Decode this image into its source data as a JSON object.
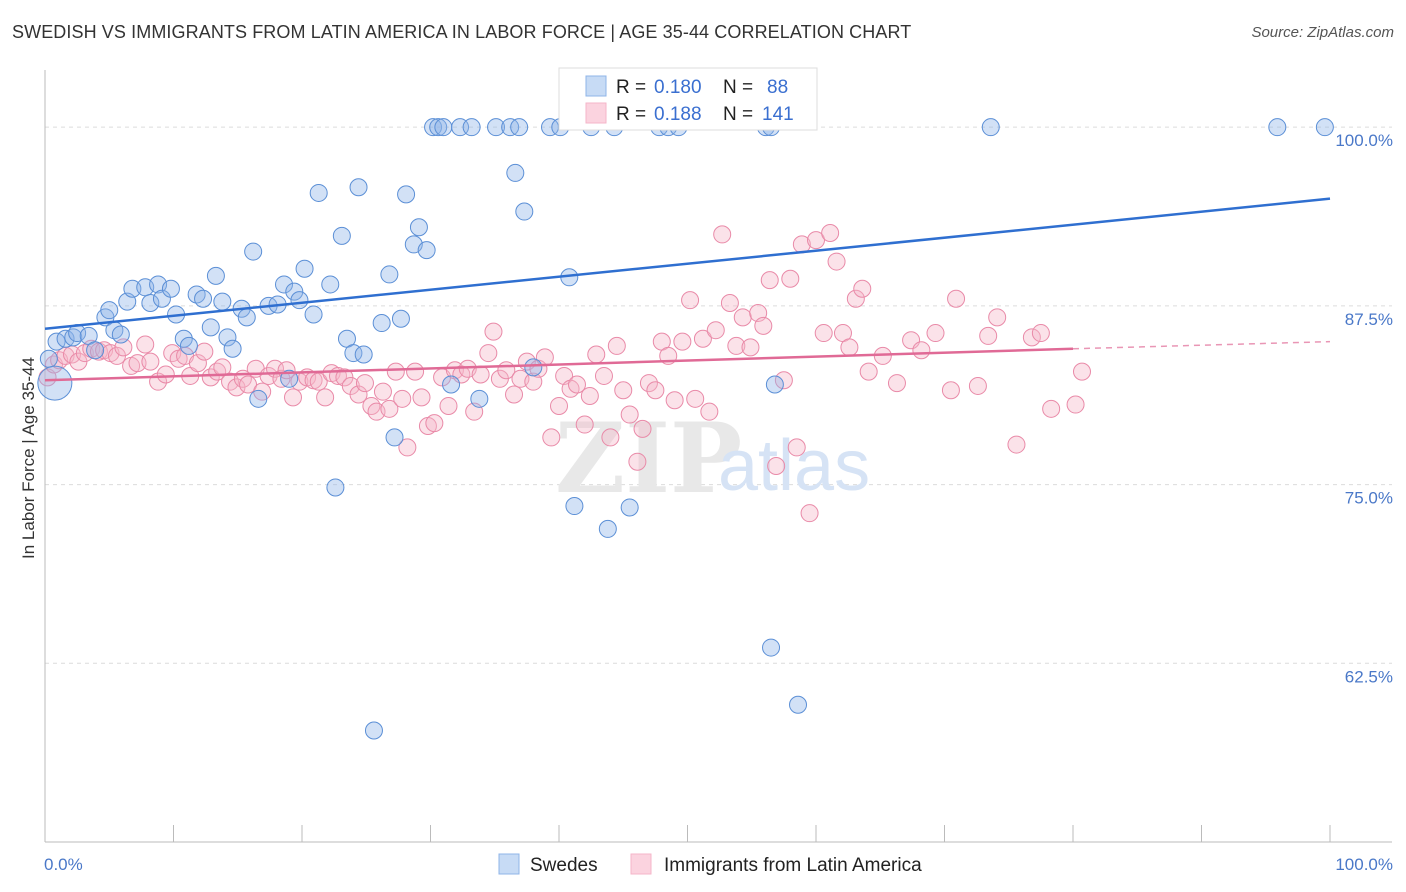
{
  "header": {
    "title": "SWEDISH VS IMMIGRANTS FROM LATIN AMERICA IN LABOR FORCE | AGE 35-44 CORRELATION CHART",
    "source": "Source: ZipAtlas.com"
  },
  "watermark": {
    "zip": "ZIP",
    "atlas": "atlas"
  },
  "chart_data": {
    "type": "scatter",
    "ylabel": "In Labor Force | Age 35-44",
    "xlim": [
      0,
      100
    ],
    "ylim": [
      50,
      104
    ],
    "x_tick_labels": [
      "0.0%",
      "100.0%"
    ],
    "y_ticks": [
      {
        "value": 100,
        "label": "100.0%"
      },
      {
        "value": 87.5,
        "label": "87.5%"
      },
      {
        "value": 75,
        "label": "75.0%"
      },
      {
        "value": 62.5,
        "label": "62.5%"
      }
    ],
    "grid": "horizontal dashed",
    "legend": {
      "placement": "top-center",
      "entries": [
        {
          "r_label": "R =",
          "r_value": "0.180",
          "n_label": "N =",
          "n_value": "88"
        },
        {
          "r_label": "R =",
          "r_value": "0.188",
          "n_label": "N =",
          "n_value": "141"
        }
      ]
    },
    "series": [
      {
        "name": "Swedes",
        "color": "#8fb4e8",
        "edge": "#5b8fd6",
        "trend_color": "#2f6fd0",
        "trend": {
          "x": [
            0,
            100
          ],
          "y": [
            85.9,
            95.0
          ]
        },
        "points": [
          [
            0.3,
            83.8
          ],
          [
            0.9,
            85.0
          ],
          [
            1.6,
            85.2
          ],
          [
            2.2,
            85.3
          ],
          [
            2.5,
            85.6
          ],
          [
            3.4,
            85.4
          ],
          [
            3.9,
            84.4
          ],
          [
            4.7,
            86.7
          ],
          [
            5.0,
            87.2
          ],
          [
            5.4,
            85.8
          ],
          [
            5.9,
            85.5
          ],
          [
            6.4,
            87.8
          ],
          [
            6.8,
            88.7
          ],
          [
            7.8,
            88.8
          ],
          [
            8.2,
            87.7
          ],
          [
            8.8,
            89.0
          ],
          [
            9.1,
            88.0
          ],
          [
            9.8,
            88.7
          ],
          [
            10.2,
            86.9
          ],
          [
            10.8,
            85.2
          ],
          [
            11.2,
            84.7
          ],
          [
            11.8,
            88.3
          ],
          [
            12.3,
            88.0
          ],
          [
            12.9,
            86.0
          ],
          [
            13.3,
            89.6
          ],
          [
            13.8,
            87.8
          ],
          [
            14.2,
            85.3
          ],
          [
            14.6,
            84.5
          ],
          [
            15.3,
            87.3
          ],
          [
            15.7,
            86.7
          ],
          [
            16.2,
            91.3
          ],
          [
            16.6,
            81.0
          ],
          [
            17.4,
            87.5
          ],
          [
            18.1,
            87.6
          ],
          [
            18.6,
            89.0
          ],
          [
            19.0,
            82.4
          ],
          [
            19.4,
            88.5
          ],
          [
            19.8,
            87.9
          ],
          [
            20.2,
            90.1
          ],
          [
            20.9,
            86.9
          ],
          [
            21.3,
            95.4
          ],
          [
            22.2,
            89.0
          ],
          [
            22.6,
            74.8
          ],
          [
            23.1,
            92.4
          ],
          [
            23.5,
            85.2
          ],
          [
            24.0,
            84.2
          ],
          [
            24.4,
            95.8
          ],
          [
            24.8,
            84.1
          ],
          [
            25.6,
            57.8
          ],
          [
            26.2,
            86.3
          ],
          [
            26.8,
            89.7
          ],
          [
            27.2,
            78.3
          ],
          [
            27.7,
            86.6
          ],
          [
            28.1,
            95.3
          ],
          [
            28.7,
            91.8
          ],
          [
            29.1,
            93.0
          ],
          [
            29.7,
            91.4
          ],
          [
            30.2,
            100
          ],
          [
            30.6,
            100
          ],
          [
            31.0,
            100
          ],
          [
            31.6,
            82.0
          ],
          [
            32.3,
            100
          ],
          [
            33.2,
            100
          ],
          [
            33.8,
            81.0
          ],
          [
            35.1,
            100
          ],
          [
            36.2,
            100
          ],
          [
            36.6,
            96.8
          ],
          [
            36.9,
            100
          ],
          [
            37.3,
            94.1
          ],
          [
            38.0,
            83.2
          ],
          [
            39.3,
            100
          ],
          [
            40.1,
            100
          ],
          [
            40.8,
            89.5
          ],
          [
            41.2,
            73.5
          ],
          [
            42.5,
            100
          ],
          [
            43.8,
            71.9
          ],
          [
            44.3,
            100
          ],
          [
            45.5,
            73.4
          ],
          [
            47.8,
            100
          ],
          [
            48.5,
            100
          ],
          [
            49.3,
            100
          ],
          [
            56.1,
            100
          ],
          [
            56.5,
            100
          ],
          [
            56.8,
            82.0
          ],
          [
            56.5,
            63.6
          ],
          [
            58.6,
            59.6
          ],
          [
            73.6,
            100
          ],
          [
            95.9,
            100
          ],
          [
            99.6,
            100
          ]
        ]
      },
      {
        "name": "Immigrants from Latin America",
        "color": "#f4b6c9",
        "edge": "#e98aa8",
        "trend_color": "#e06a96",
        "trend": {
          "x": [
            0,
            80
          ],
          "y": [
            82.3,
            84.5
          ]
        },
        "trend_ext": {
          "x": [
            80,
            100
          ],
          "y": [
            84.5,
            85.0
          ]
        },
        "points": [
          [
            0.2,
            82.5
          ],
          [
            0.7,
            83.4
          ],
          [
            1.1,
            83.7
          ],
          [
            1.6,
            84.0
          ],
          [
            2.1,
            84.1
          ],
          [
            2.6,
            83.6
          ],
          [
            3.1,
            84.2
          ],
          [
            3.6,
            84.5
          ],
          [
            4.2,
            84.3
          ],
          [
            4.6,
            84.4
          ],
          [
            5.1,
            84.2
          ],
          [
            5.6,
            84.0
          ],
          [
            6.1,
            84.6
          ],
          [
            6.7,
            83.3
          ],
          [
            7.2,
            83.5
          ],
          [
            7.8,
            84.8
          ],
          [
            8.2,
            83.6
          ],
          [
            8.8,
            82.2
          ],
          [
            9.4,
            82.7
          ],
          [
            9.9,
            84.2
          ],
          [
            10.4,
            83.8
          ],
          [
            10.9,
            84.0
          ],
          [
            11.3,
            82.6
          ],
          [
            11.9,
            83.5
          ],
          [
            12.4,
            84.3
          ],
          [
            12.9,
            82.5
          ],
          [
            13.4,
            82.9
          ],
          [
            13.8,
            83.2
          ],
          [
            14.4,
            82.2
          ],
          [
            14.9,
            81.8
          ],
          [
            15.4,
            82.4
          ],
          [
            15.8,
            82.0
          ],
          [
            16.4,
            83.1
          ],
          [
            16.9,
            81.5
          ],
          [
            17.4,
            82.6
          ],
          [
            17.9,
            83.1
          ],
          [
            18.4,
            82.4
          ],
          [
            18.8,
            83.0
          ],
          [
            19.3,
            81.1
          ],
          [
            19.8,
            82.2
          ],
          [
            20.4,
            82.5
          ],
          [
            20.9,
            82.3
          ],
          [
            21.3,
            82.2
          ],
          [
            21.8,
            81.1
          ],
          [
            22.3,
            82.8
          ],
          [
            22.8,
            82.6
          ],
          [
            23.3,
            82.5
          ],
          [
            23.8,
            81.9
          ],
          [
            24.4,
            81.3
          ],
          [
            24.9,
            82.1
          ],
          [
            25.4,
            80.5
          ],
          [
            25.8,
            80.1
          ],
          [
            26.3,
            81.5
          ],
          [
            26.8,
            80.3
          ],
          [
            27.3,
            82.9
          ],
          [
            27.8,
            81.0
          ],
          [
            28.2,
            77.6
          ],
          [
            28.8,
            82.9
          ],
          [
            29.3,
            81.1
          ],
          [
            29.8,
            79.1
          ],
          [
            30.3,
            79.3
          ],
          [
            30.9,
            82.5
          ],
          [
            31.4,
            80.5
          ],
          [
            31.9,
            83.0
          ],
          [
            32.4,
            82.7
          ],
          [
            32.9,
            83.1
          ],
          [
            33.4,
            80.1
          ],
          [
            33.9,
            82.7
          ],
          [
            34.5,
            84.2
          ],
          [
            34.9,
            85.7
          ],
          [
            35.4,
            82.4
          ],
          [
            35.9,
            83.0
          ],
          [
            36.5,
            81.3
          ],
          [
            37.0,
            82.4
          ],
          [
            37.5,
            83.6
          ],
          [
            38.0,
            82.2
          ],
          [
            38.4,
            83.1
          ],
          [
            38.9,
            83.9
          ],
          [
            39.4,
            78.3
          ],
          [
            40.0,
            80.5
          ],
          [
            40.4,
            82.6
          ],
          [
            40.9,
            81.7
          ],
          [
            41.4,
            82.0
          ],
          [
            42.0,
            79.2
          ],
          [
            42.4,
            81.2
          ],
          [
            42.9,
            84.1
          ],
          [
            43.5,
            82.6
          ],
          [
            44.0,
            78.3
          ],
          [
            44.5,
            84.7
          ],
          [
            45.0,
            81.6
          ],
          [
            45.5,
            79.9
          ],
          [
            46.1,
            76.6
          ],
          [
            46.5,
            78.9
          ],
          [
            47.0,
            82.1
          ],
          [
            47.5,
            81.6
          ],
          [
            48.0,
            85.0
          ],
          [
            48.5,
            84.0
          ],
          [
            49.0,
            80.9
          ],
          [
            49.6,
            85.0
          ],
          [
            50.2,
            87.9
          ],
          [
            50.6,
            81.0
          ],
          [
            51.2,
            85.2
          ],
          [
            51.7,
            80.1
          ],
          [
            52.2,
            85.8
          ],
          [
            52.7,
            92.5
          ],
          [
            53.3,
            87.7
          ],
          [
            53.8,
            84.7
          ],
          [
            54.3,
            86.7
          ],
          [
            54.9,
            84.6
          ],
          [
            55.5,
            87.0
          ],
          [
            55.9,
            86.1
          ],
          [
            56.4,
            89.3
          ],
          [
            56.9,
            76.3
          ],
          [
            57.5,
            82.3
          ],
          [
            58.0,
            89.4
          ],
          [
            58.5,
            77.6
          ],
          [
            58.9,
            91.8
          ],
          [
            59.5,
            73.0
          ],
          [
            60.0,
            92.1
          ],
          [
            60.6,
            85.6
          ],
          [
            61.1,
            92.6
          ],
          [
            61.6,
            90.6
          ],
          [
            62.1,
            85.6
          ],
          [
            62.6,
            84.6
          ],
          [
            63.1,
            88.0
          ],
          [
            63.6,
            88.7
          ],
          [
            64.1,
            82.9
          ],
          [
            65.2,
            84.0
          ],
          [
            66.3,
            82.1
          ],
          [
            67.4,
            85.1
          ],
          [
            68.2,
            84.4
          ],
          [
            69.3,
            85.6
          ],
          [
            70.5,
            81.6
          ],
          [
            70.9,
            88.0
          ],
          [
            72.6,
            81.9
          ],
          [
            73.4,
            85.4
          ],
          [
            74.1,
            86.7
          ],
          [
            75.6,
            77.8
          ],
          [
            76.8,
            85.3
          ],
          [
            77.5,
            85.6
          ],
          [
            78.3,
            80.3
          ],
          [
            80.7,
            82.9
          ],
          [
            80.2,
            80.6
          ]
        ]
      }
    ]
  }
}
